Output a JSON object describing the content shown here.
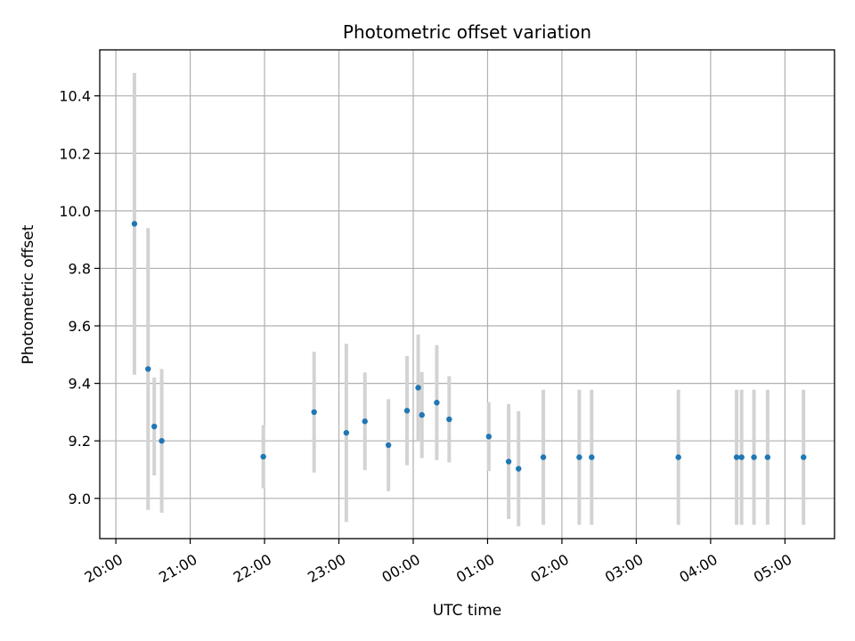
{
  "chart_data": {
    "type": "scatter",
    "title": "Photometric offset variation",
    "xlabel": "UTC time",
    "ylabel": "Photometric offset",
    "x_axis_kind": "time",
    "x_ticks": [
      "20:00",
      "21:00",
      "22:00",
      "23:00",
      "00:00",
      "01:00",
      "02:00",
      "03:00",
      "04:00",
      "05:00"
    ],
    "y_ticks": [
      "9.0",
      "9.2",
      "9.4",
      "9.6",
      "9.8",
      "10.0",
      "10.2",
      "10.4"
    ],
    "xlim": [
      "19:47",
      "05:40"
    ],
    "ylim": [
      8.86,
      10.56
    ],
    "grid": true,
    "point_color": "#1f77b4",
    "errorbar_color": "#d3d3d3",
    "points": [
      {
        "x": "20:15",
        "y": 9.955,
        "err": 0.525
      },
      {
        "x": "20:26",
        "y": 9.45,
        "err": 0.49
      },
      {
        "x": "20:31",
        "y": 9.25,
        "err": 0.17
      },
      {
        "x": "20:37",
        "y": 9.2,
        "err": 0.25
      },
      {
        "x": "21:59",
        "y": 9.145,
        "err": 0.11
      },
      {
        "x": "22:40",
        "y": 9.3,
        "err": 0.21
      },
      {
        "x": "23:06",
        "y": 9.228,
        "err": 0.31
      },
      {
        "x": "23:21",
        "y": 9.268,
        "err": 0.17
      },
      {
        "x": "23:40",
        "y": 9.185,
        "err": 0.16
      },
      {
        "x": "23:55",
        "y": 9.305,
        "err": 0.19
      },
      {
        "x": "00:04",
        "y": 9.385,
        "err": 0.185
      },
      {
        "x": "00:07",
        "y": 9.29,
        "err": 0.15
      },
      {
        "x": "00:19",
        "y": 9.333,
        "err": 0.2
      },
      {
        "x": "00:29",
        "y": 9.275,
        "err": 0.15
      },
      {
        "x": "01:01",
        "y": 9.215,
        "err": 0.12
      },
      {
        "x": "01:17",
        "y": 9.128,
        "err": 0.2
      },
      {
        "x": "01:25",
        "y": 9.103,
        "err": 0.2
      },
      {
        "x": "01:45",
        "y": 9.143,
        "err": 0.235
      },
      {
        "x": "02:14",
        "y": 9.143,
        "err": 0.235
      },
      {
        "x": "02:24",
        "y": 9.143,
        "err": 0.235
      },
      {
        "x": "03:34",
        "y": 9.143,
        "err": 0.235
      },
      {
        "x": "04:21",
        "y": 9.143,
        "err": 0.235
      },
      {
        "x": "04:25",
        "y": 9.143,
        "err": 0.235
      },
      {
        "x": "04:35",
        "y": 9.143,
        "err": 0.235
      },
      {
        "x": "04:46",
        "y": 9.143,
        "err": 0.235
      },
      {
        "x": "05:15",
        "y": 9.143,
        "err": 0.235
      }
    ]
  }
}
